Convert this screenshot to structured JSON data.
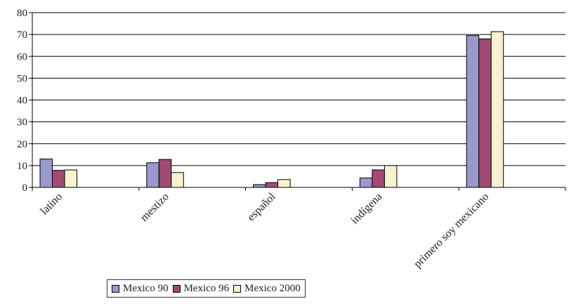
{
  "chart_data": {
    "type": "bar",
    "title": "",
    "xlabel": "",
    "ylabel": "",
    "categories": [
      "latino",
      "mestizo",
      "español",
      "indígena",
      "primero soy mexicano"
    ],
    "series": [
      {
        "name": "Mexico 90",
        "color": "#9999cc",
        "values": [
          13,
          11.3,
          1.3,
          4.3,
          69.5
        ]
      },
      {
        "name": "Mexico 96",
        "color": "#a14a73",
        "values": [
          7.8,
          12.8,
          2.2,
          8,
          68
        ]
      },
      {
        "name": "Mexico 2000",
        "color": "#f5f2cf",
        "values": [
          8,
          6.8,
          3.6,
          10,
          71.3
        ]
      }
    ],
    "ylim": [
      0,
      80
    ],
    "yticks": [
      0,
      10,
      20,
      30,
      40,
      50,
      60,
      70,
      80
    ],
    "grid": true,
    "legend": "bottom"
  }
}
